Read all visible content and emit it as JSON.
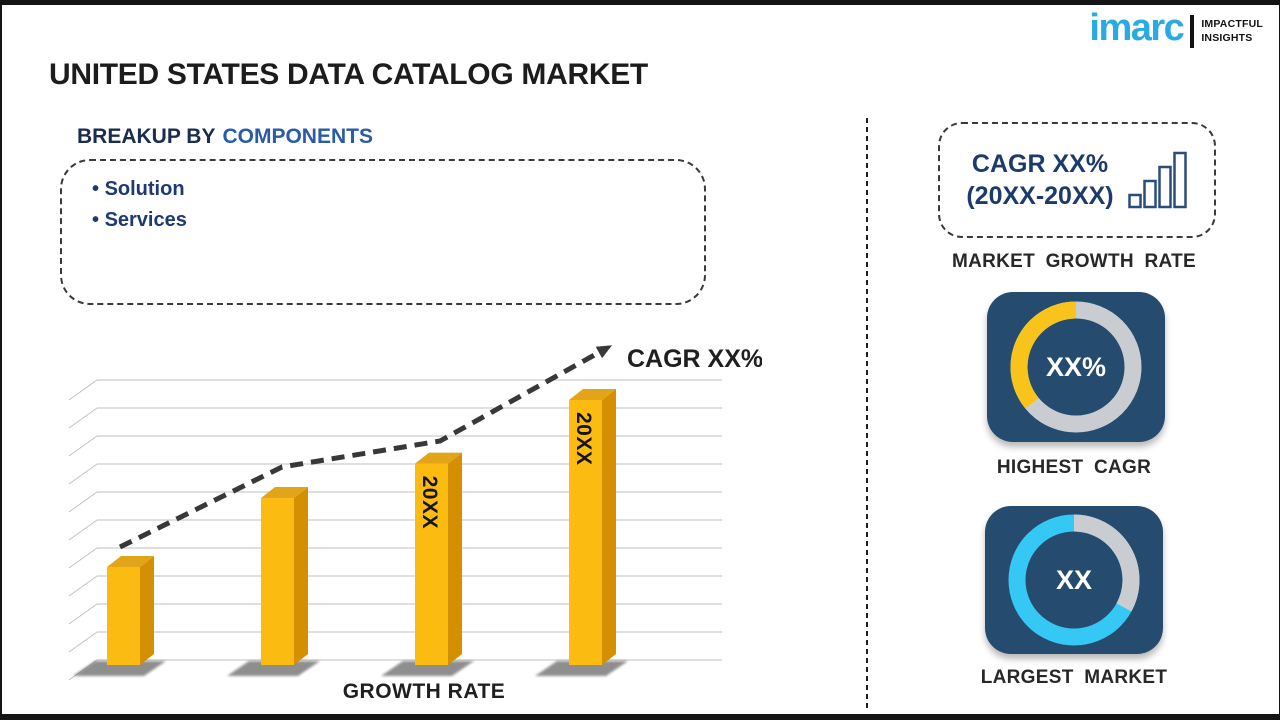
{
  "page": {
    "title": "UNITED STATES DATA CATALOG MARKET"
  },
  "logo": {
    "brand": "imarc",
    "tagline_line1": "IMPACTFUL",
    "tagline_line2": "INSIGHTS",
    "brand_color": "#29ABE2"
  },
  "breakup": {
    "heading_prefix": "BREAKUP BY",
    "heading_highlight": "COMPONENTS",
    "items": [
      "Solution",
      "Services"
    ]
  },
  "chart_data": {
    "type": "bar",
    "title": "",
    "categories": [
      "",
      "",
      "20XX",
      "20XX"
    ],
    "values_relative": [
      0.37,
      0.63,
      0.76,
      1.0
    ],
    "axis_values_shown": false,
    "gridlines": 11,
    "legend": "none",
    "xlabel": "GROWTH RATE",
    "ylabel": "",
    "trend_label": "CAGR XX%",
    "bar_color": "#FCBB10",
    "bar_side_color": "#D49000",
    "bar_top_color": "#E2A51A",
    "trend_color": "#383838"
  },
  "right_panel": {
    "growth_box": {
      "line1": "CAGR XX%",
      "line2": "(20XX-20XX)",
      "caption": "MARKET GROWTH RATE"
    },
    "highest_cagr": {
      "value": "XX%",
      "caption": "HIGHEST CAGR",
      "fraction": 0.36,
      "ring_color": "#F8C41C",
      "ring_base": "#C9CDD2",
      "tile_bg": "#254B6E"
    },
    "largest_market": {
      "value": "XX",
      "caption": "LARGEST MARKET",
      "fraction": 0.67,
      "ring_color": "#35C8F5",
      "ring_base": "#C9CDD2",
      "tile_bg": "#254B6E"
    }
  }
}
